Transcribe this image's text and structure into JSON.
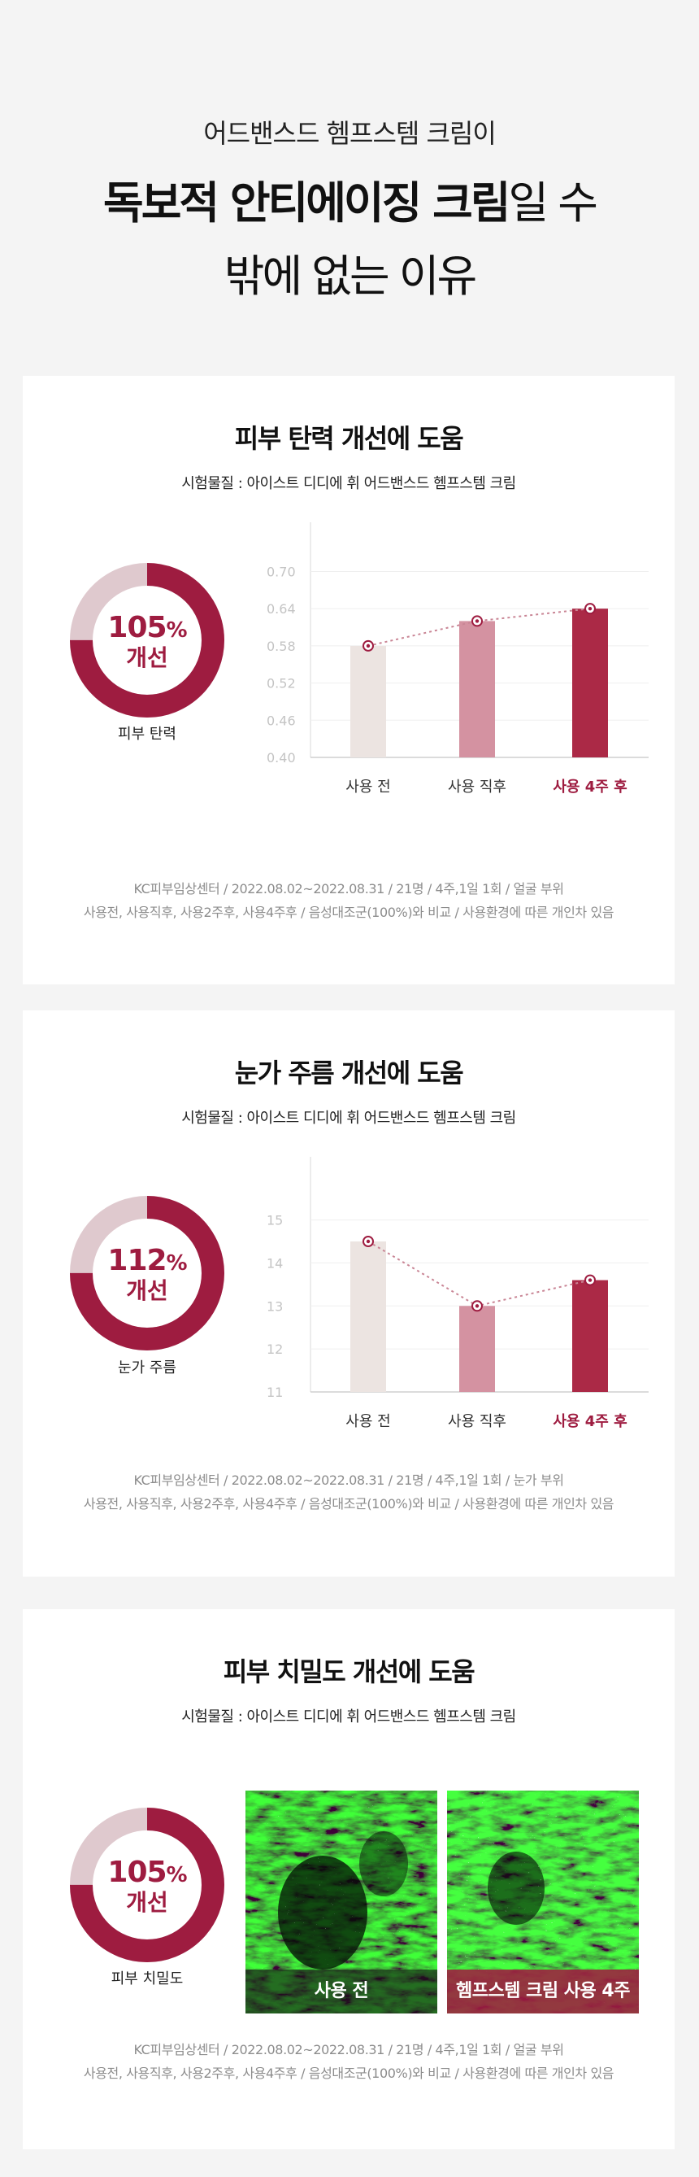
{
  "intro": {
    "lead": "어드밴스드 헴프스템 크림이",
    "headline_bold": "독보적 안티에이징 크림",
    "headline_rest": "일 수",
    "headline_line2": "밖에 없는 이유"
  },
  "colors": {
    "accent": "#9e1c40",
    "track": "#dfc9ce",
    "bar_before": "#ece4e1",
    "bar_after_use": "#d492a1",
    "bar_4weeks": "#ab2946",
    "page_bg": "#f4f4f4"
  },
  "sections": [
    {
      "title": "피부 탄력 개선에 도움",
      "subject": "시험물질 : 아이스트 디디에 휘 어드밴스드 헴프스템 크림",
      "donut": {
        "value": "105",
        "unit": "%",
        "word": "개선",
        "fill_fraction": 0.75,
        "label": "피부 탄력"
      },
      "foot_line1": "KC피부임상센터 / 2022.08.02~2022.08.31 / 21명 / 4주,1일 1회 / 얼굴 부위",
      "foot_line2": "사용전, 사용직후, 사용2주후, 사용4주후 / 음성대조군(100%)와 비교 / 사용환경에 따른 개인차 있음"
    },
    {
      "title": "눈가 주름 개선에 도움",
      "subject": "시험물질 : 아이스트 디디에 휘 어드밴스드 헴프스템 크림",
      "donut": {
        "value": "112",
        "unit": "%",
        "word": "개선",
        "fill_fraction": 0.75,
        "label": "눈가 주름"
      },
      "foot_line1": "KC피부임상센터 / 2022.08.02~2022.08.31 / 21명 / 4주,1일 1회 / 눈가 부위",
      "foot_line2": "사용전, 사용직후, 사용2주후, 사용4주후 / 음성대조군(100%)와 비교 / 사용환경에 따른 개인차 있음"
    },
    {
      "title": "피부 치밀도 개선에 도움",
      "subject": "시험물질 : 아이스트 디디에 휘 어드밴스드 헴프스템 크림",
      "donut": {
        "value": "105",
        "unit": "%",
        "word": "개선",
        "fill_fraction": 0.75,
        "label": "피부 치밀도"
      },
      "photos": [
        {
          "caption": "사용 전"
        },
        {
          "caption": "헴프스템 크림 사용 4주"
        }
      ],
      "foot_line1": "KC피부임상센터 / 2022.08.02~2022.08.31 / 21명 / 4주,1일 1회 / 얼굴 부위",
      "foot_line2": "사용전, 사용직후, 사용2주후, 사용4주후 / 음성대조군(100%)와 비교 / 사용환경에 따른 개인차 있음"
    }
  ],
  "chart_data": [
    {
      "type": "bar",
      "categories": [
        "사용 전",
        "사용 직후",
        "사용 4주 후"
      ],
      "values": [
        0.58,
        0.62,
        0.64
      ],
      "yticks": [
        "0.70",
        "0.64",
        "0.58",
        "0.52",
        "0.46",
        "0.40"
      ],
      "ylim": [
        0.4,
        0.74
      ],
      "trend_line": true,
      "grid": true,
      "highlight_category": 2
    },
    {
      "type": "bar",
      "categories": [
        "사용 전",
        "사용 직후",
        "사용 4주 후"
      ],
      "values": [
        14.5,
        13.0,
        13.6
      ],
      "yticks": [
        "15",
        "14",
        "13",
        "12",
        "11"
      ],
      "ylim": [
        11,
        15.9
      ],
      "trend_line": true,
      "grid": true,
      "highlight_category": 2
    }
  ]
}
